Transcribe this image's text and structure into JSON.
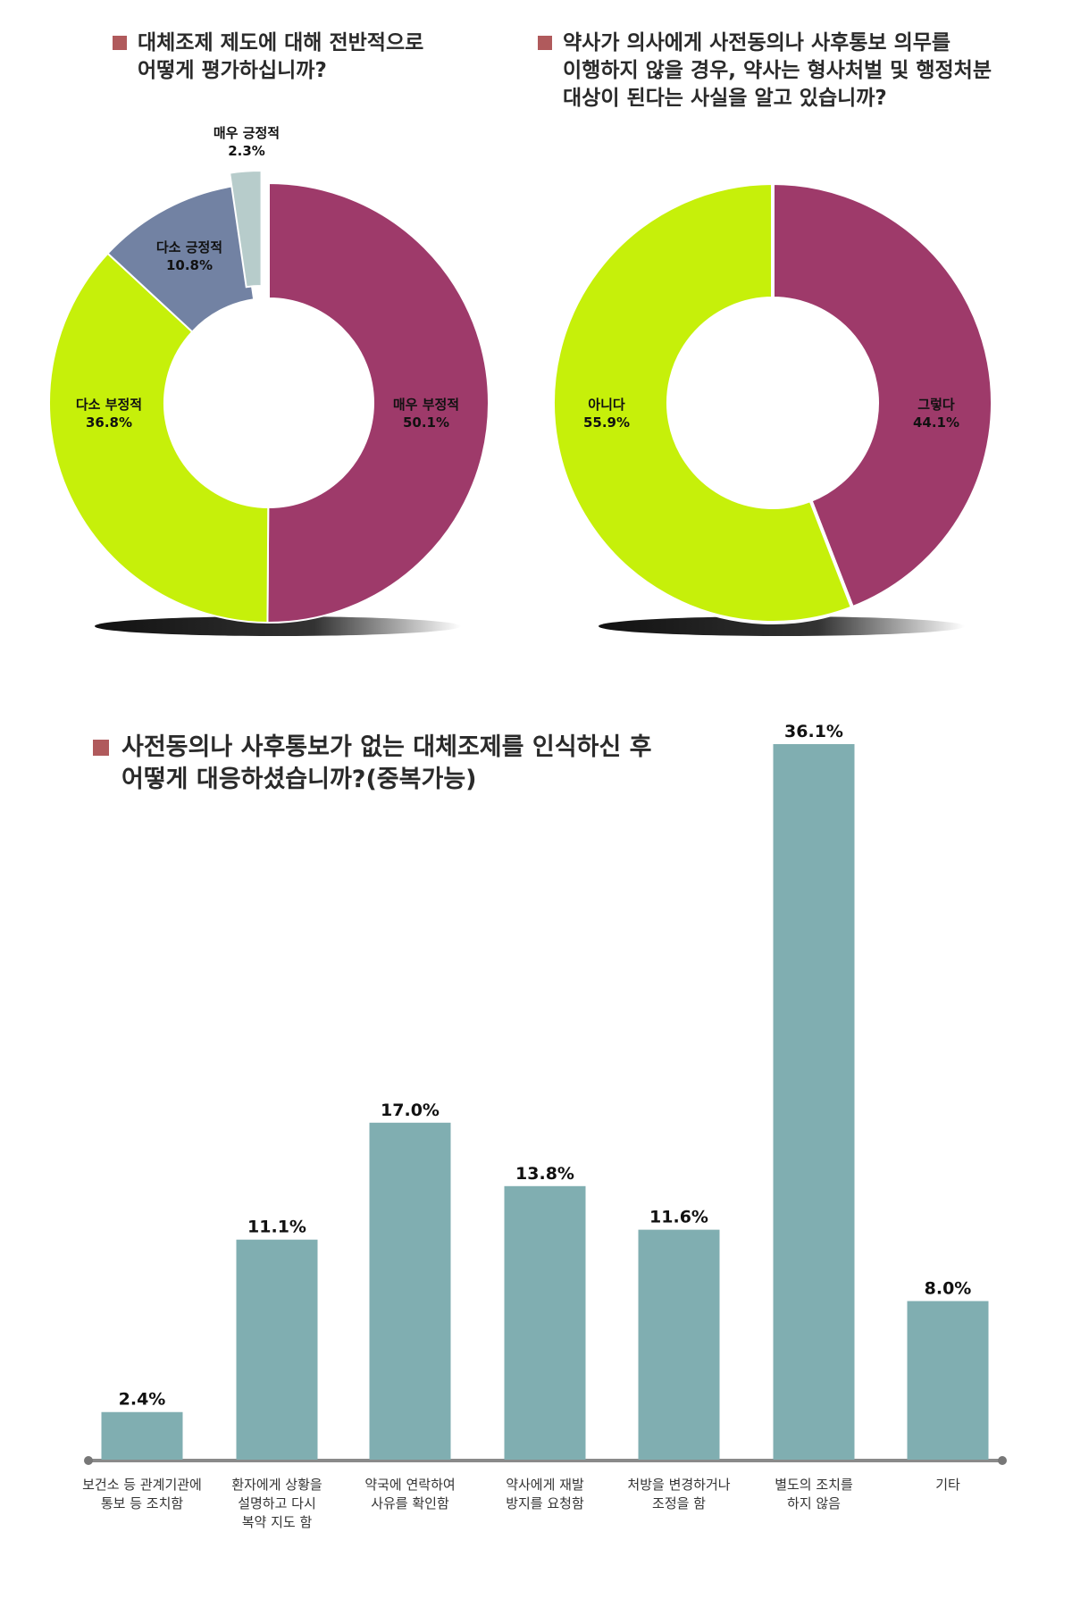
{
  "colors": {
    "purple": "#9e3a6a",
    "lime": "#c6f00a",
    "slate": "#7282a3",
    "light": "#b7cccb",
    "bar": "#80aeb1",
    "marker": "#b05a5c"
  },
  "chart_data": [
    {
      "type": "pie",
      "variant": "donut",
      "title": [
        "대체조제 제도에 대해 전반적으로",
        "어떻게 평가하십니까?"
      ],
      "slices": [
        {
          "label": "매우 부정적",
          "value": 50.1,
          "value_label": "50.1%",
          "color": "#9e3a6a"
        },
        {
          "label": "다소 부정적",
          "value": 36.8,
          "value_label": "36.8%",
          "color": "#c6f00a"
        },
        {
          "label": "다소 긍정적",
          "value": 10.8,
          "value_label": "10.8%",
          "color": "#7282a3"
        },
        {
          "label": "매우 긍정적",
          "value": 2.3,
          "value_label": "2.3%",
          "color": "#b7cccb",
          "exploded": true
        }
      ]
    },
    {
      "type": "pie",
      "variant": "donut",
      "title": [
        "약사가 의사에게 사전동의나 사후통보 의무를",
        "이행하지 않을 경우, 약사는 형사처벌 및 행정처분",
        "대상이 된다는 사실을 알고 있습니까?"
      ],
      "slices": [
        {
          "label": "그렇다",
          "value": 44.1,
          "value_label": "44.1%",
          "color": "#9e3a6a"
        },
        {
          "label": "아니다",
          "value": 55.9,
          "value_label": "55.9%",
          "color": "#c6f00a"
        }
      ]
    },
    {
      "type": "bar",
      "title": [
        "사전동의나 사후통보가 없는 대체조제를 인식하신 후",
        "어떻게 대응하셨습니까?(중복가능)"
      ],
      "categories": [
        [
          "보건소 등 관계기관에",
          "통보 등 조치함"
        ],
        [
          "환자에게 상황을",
          "설명하고 다시",
          "복약 지도 함"
        ],
        [
          "약국에 연락하여",
          "사유를 확인함"
        ],
        [
          "약사에게 재발",
          "방지를 요청함"
        ],
        [
          "처방을 변경하거나",
          "조정을 함"
        ],
        [
          "별도의 조치를",
          "하지 않음"
        ],
        [
          "기타"
        ]
      ],
      "values": [
        2.4,
        11.1,
        17.0,
        13.8,
        11.6,
        36.1,
        8.0
      ],
      "value_labels": [
        "2.4%",
        "11.1%",
        "17.0%",
        "13.8%",
        "11.6%",
        "36.1%",
        "8.0%"
      ],
      "color": "#80aeb1",
      "ylim": [
        0,
        36.1
      ],
      "grid": false
    }
  ]
}
